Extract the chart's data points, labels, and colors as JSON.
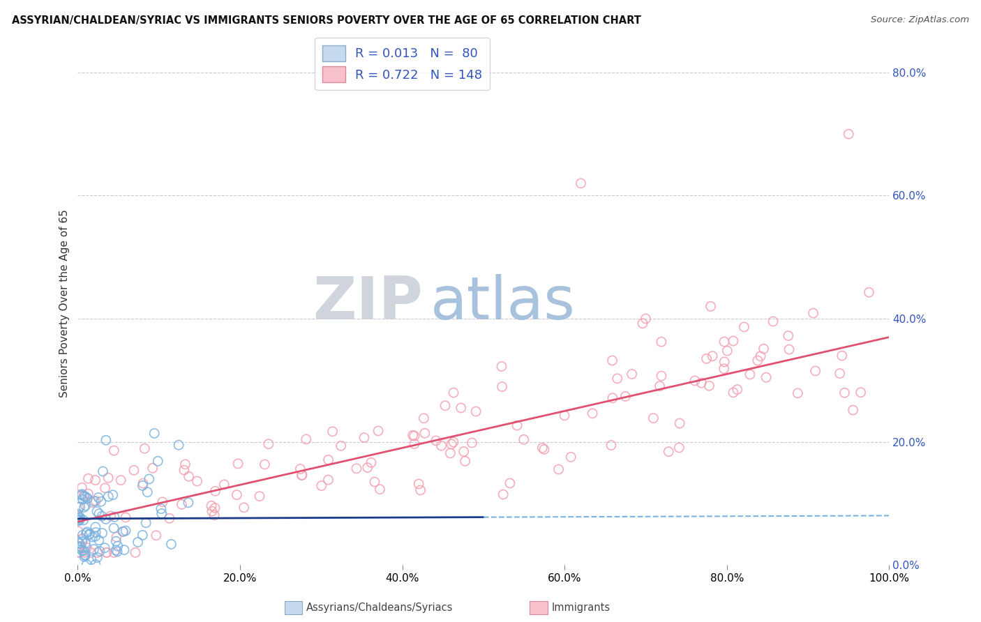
{
  "title": "ASSYRIAN/CHALDEAN/SYRIAC VS IMMIGRANTS SENIORS POVERTY OVER THE AGE OF 65 CORRELATION CHART",
  "source": "Source: ZipAtlas.com",
  "ylabel": "Seniors Poverty Over the Age of 65",
  "xlim": [
    0,
    1.0
  ],
  "ylim": [
    0,
    0.85
  ],
  "xticklabels": [
    "0.0%",
    "",
    "20.0%",
    "",
    "40.0%",
    "",
    "60.0%",
    "",
    "80.0%",
    "",
    "100.0%"
  ],
  "ytick_vals": [
    0.0,
    0.2,
    0.4,
    0.6,
    0.8
  ],
  "yticklabels_right": [
    "0.0%",
    "20.0%",
    "40.0%",
    "60.0%",
    "80.0%"
  ],
  "blue_R": 0.013,
  "blue_N": 80,
  "pink_R": 0.722,
  "pink_N": 148,
  "blue_scatter_color": "#7ab3e0",
  "pink_scatter_color": "#f4a0b0",
  "blue_line_color": "#1a3a8a",
  "pink_line_color": "#e05070",
  "tick_color": "#3355bb",
  "legend_label_blue": "Assyrians/Chaldeans/Syriacs",
  "legend_label_pink": "Immigrants",
  "watermark_zip": "ZIP",
  "watermark_atlas": "atlas",
  "watermark_zip_color": "#c8cdd8",
  "watermark_atlas_color": "#99b8d8",
  "background_color": "#ffffff",
  "grid_color": "#bbbbcc",
  "blue_line_end_x": 0.5,
  "blue_reg_intercept": 0.075,
  "blue_reg_slope": 0.005,
  "pink_reg_intercept": 0.07,
  "pink_reg_slope": 0.3
}
